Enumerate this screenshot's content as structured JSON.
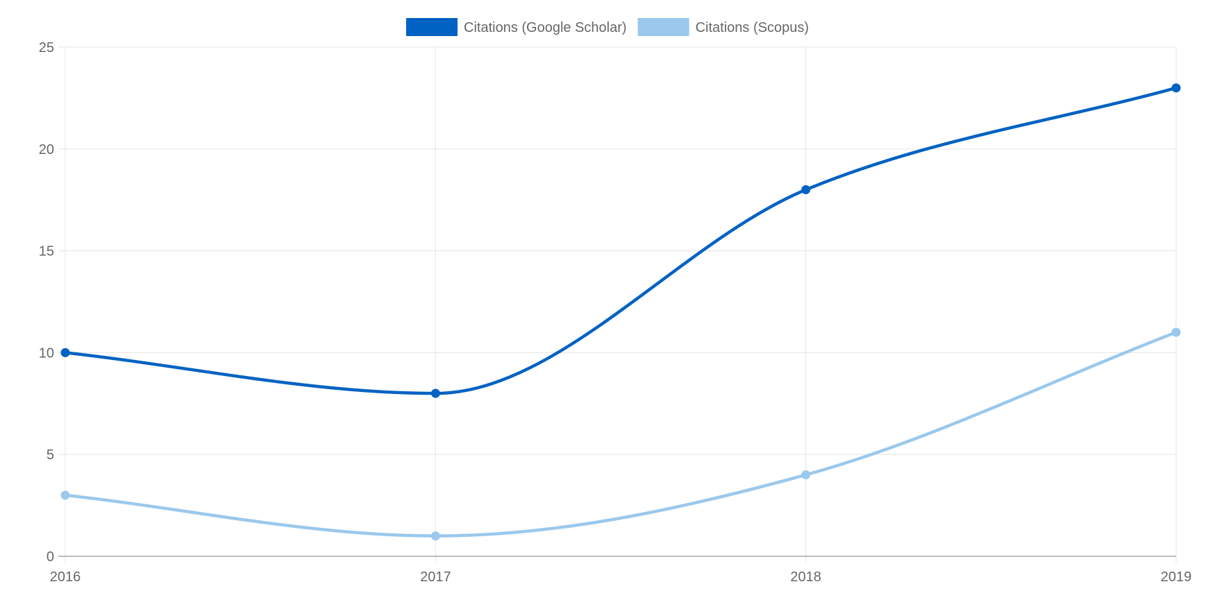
{
  "chart_data": {
    "type": "line",
    "x": [
      "2016",
      "2017",
      "2018",
      "2019"
    ],
    "series": [
      {
        "name": "Citations (Google Scholar)",
        "values": [
          10,
          8,
          18,
          23
        ],
        "color": "#0062c2"
      },
      {
        "name": "Citations (Scopus)",
        "values": [
          3,
          1,
          4,
          11
        ],
        "color": "#9bc8ec"
      }
    ],
    "ylim": [
      0,
      25
    ],
    "yticks": [
      "0",
      "5",
      "10",
      "15",
      "20",
      "25"
    ],
    "grid": true,
    "legend_position": "top-center",
    "smooth": true
  },
  "colors": {
    "grid": "#e5e5e5",
    "axis": "#a8a8a8",
    "tick_text": "#666666"
  }
}
